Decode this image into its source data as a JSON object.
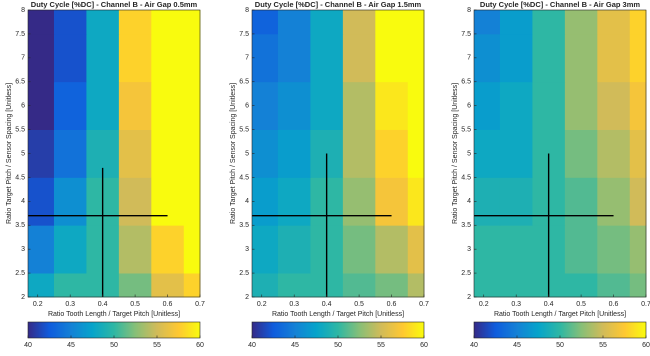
{
  "chart_data": [
    {
      "type": "heatmap",
      "title": "Duty Cycle [%DC] - Channel B - Air Gap 0.5mm",
      "xlabel": "Ratio Tooth Length / Target Pitch [Unitless]",
      "ylabel": "Ratio Target Pitch / Sensor Spacing [Unitless]",
      "x": [
        0.2,
        0.3,
        0.4,
        0.5,
        0.6,
        0.7
      ],
      "y": [
        2,
        3,
        4,
        5,
        6,
        7,
        8
      ],
      "z": [
        [
          48,
          50,
          50,
          52,
          56,
          58
        ],
        [
          45,
          48,
          50,
          54,
          58,
          60
        ],
        [
          42,
          46,
          50,
          55,
          60,
          60
        ],
        [
          41,
          44,
          49,
          56,
          60,
          60
        ],
        [
          40,
          43,
          48,
          57,
          60,
          60
        ],
        [
          40,
          42,
          48,
          58,
          60,
          60
        ],
        [
          40,
          42,
          48,
          58,
          60,
          60
        ]
      ],
      "xlim": [
        0.17,
        0.7
      ],
      "ylim": [
        2,
        8
      ],
      "xticks": [
        0.2,
        0.3,
        0.4,
        0.5,
        0.6,
        0.7
      ],
      "yticks": [
        2,
        2.5,
        3,
        3.5,
        4,
        4.5,
        5,
        5.5,
        6,
        6.5,
        7,
        7.5,
        8
      ],
      "clim": [
        40,
        60
      ],
      "cticks": [
        40,
        45,
        50,
        55,
        60
      ],
      "colormap": [
        "#352a87",
        "#0f5cdd",
        "#1481d6",
        "#06a4ca",
        "#2eb7a4",
        "#87bf77",
        "#d1bb59",
        "#fec832",
        "#f9fb0e"
      ],
      "lines": [
        {
          "x": [
            0.4,
            0.4
          ],
          "y": [
            2,
            4.7
          ]
        },
        {
          "x": [
            0.17,
            0.6
          ],
          "y": [
            3.7,
            3.7
          ]
        }
      ]
    },
    {
      "type": "heatmap",
      "title": "Duty Cycle [%DC] - Channel B - Air Gap 1.5mm",
      "xlabel": "Ratio Tooth Length / Target Pitch [Unitless]",
      "ylabel": "Ratio Target Pitch / Sensor Spacing [Unitless]",
      "x": [
        0.2,
        0.3,
        0.4,
        0.5,
        0.6,
        0.7
      ],
      "y": [
        2,
        3,
        4,
        5,
        6,
        7,
        8
      ],
      "z": [
        [
          49,
          50,
          50,
          51,
          52,
          54
        ],
        [
          48,
          49,
          50,
          52,
          54,
          56
        ],
        [
          47,
          48,
          50,
          53,
          57,
          59
        ],
        [
          46,
          47,
          49,
          54,
          58,
          60
        ],
        [
          45,
          46,
          48,
          54,
          59,
          60
        ],
        [
          44,
          45,
          48,
          55,
          60,
          60
        ],
        [
          43,
          45,
          48,
          55,
          60,
          60
        ]
      ],
      "xlim": [
        0.17,
        0.7
      ],
      "ylim": [
        2,
        8
      ],
      "xticks": [
        0.2,
        0.3,
        0.4,
        0.5,
        0.6,
        0.7
      ],
      "yticks": [
        2,
        2.5,
        3,
        3.5,
        4,
        4.5,
        5,
        5.5,
        6,
        6.5,
        7,
        7.5,
        8
      ],
      "clim": [
        40,
        60
      ],
      "cticks": [
        40,
        45,
        50,
        55,
        60
      ],
      "colormap": [
        "#352a87",
        "#0f5cdd",
        "#1481d6",
        "#06a4ca",
        "#2eb7a4",
        "#87bf77",
        "#d1bb59",
        "#fec832",
        "#f9fb0e"
      ],
      "lines": [
        {
          "x": [
            0.4,
            0.4
          ],
          "y": [
            2,
            5
          ]
        },
        {
          "x": [
            0.17,
            0.6
          ],
          "y": [
            3.7,
            3.7
          ]
        }
      ]
    },
    {
      "type": "heatmap",
      "title": "Duty Cycle [%DC] - Channel B - Air Gap 3mm",
      "xlabel": "Ratio Tooth Length / Target Pitch [Unitless]",
      "ylabel": "Ratio Target Pitch / Sensor Spacing [Unitless]",
      "x": [
        0.2,
        0.3,
        0.4,
        0.5,
        0.6,
        0.7
      ],
      "y": [
        2,
        3,
        4,
        5,
        6,
        7,
        8
      ],
      "z": [
        [
          50,
          50,
          50,
          50,
          51,
          52
        ],
        [
          50,
          50,
          50,
          51,
          52,
          53
        ],
        [
          49,
          49,
          50,
          51,
          53,
          55
        ],
        [
          48,
          48,
          50,
          52,
          54,
          56
        ],
        [
          47,
          48,
          50,
          53,
          55,
          57
        ],
        [
          46,
          47,
          50,
          53,
          56,
          58
        ],
        [
          45,
          47,
          50,
          53,
          56,
          58
        ]
      ],
      "xlim": [
        0.17,
        0.7
      ],
      "ylim": [
        2,
        8
      ],
      "xticks": [
        0.2,
        0.3,
        0.4,
        0.5,
        0.6,
        0.7
      ],
      "yticks": [
        2,
        2.5,
        3,
        3.5,
        4,
        4.5,
        5,
        5.5,
        6,
        6.5,
        7,
        7.5,
        8
      ],
      "clim": [
        40,
        60
      ],
      "cticks": [
        40,
        45,
        50,
        55,
        60
      ],
      "colormap": [
        "#352a87",
        "#0f5cdd",
        "#1481d6",
        "#06a4ca",
        "#2eb7a4",
        "#87bf77",
        "#d1bb59",
        "#fec832",
        "#f9fb0e"
      ],
      "lines": [
        {
          "x": [
            0.4,
            0.4
          ],
          "y": [
            2,
            5
          ]
        },
        {
          "x": [
            0.17,
            0.6
          ],
          "y": [
            3.7,
            3.7
          ]
        }
      ]
    }
  ]
}
